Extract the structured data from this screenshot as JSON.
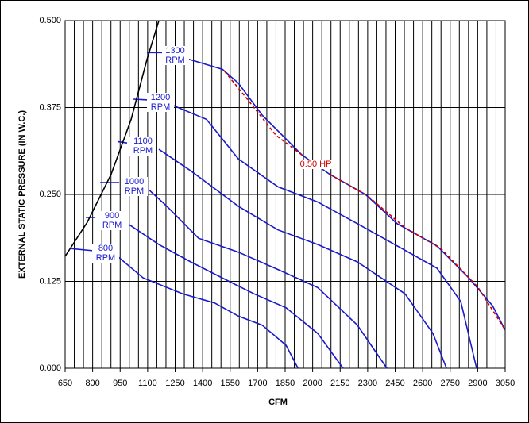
{
  "chart_data": {
    "type": "line",
    "x_label": "CFM",
    "y_label": "EXTERNAL STATIC PRESSURE (IN W.C.)",
    "xlim": [
      650,
      3050
    ],
    "ylim": [
      0,
      0.5
    ],
    "xticks": [
      650,
      800,
      950,
      1100,
      1250,
      1400,
      1550,
      1700,
      1850,
      2000,
      2150,
      2300,
      2450,
      2600,
      2750,
      2900,
      3050
    ],
    "xgrid": [
      650,
      700,
      750,
      800,
      850,
      900,
      950,
      1000,
      1050,
      1100,
      1150,
      1200,
      1250,
      1300,
      1350,
      1400,
      1450,
      1500,
      1550,
      1600,
      1650,
      1700,
      1750,
      1800,
      1850,
      1900,
      1950,
      2000,
      2050,
      2100,
      2150,
      2200,
      2250,
      2300,
      2350,
      2400,
      2450,
      2500,
      2550,
      2600,
      2650,
      2700,
      2750,
      2800,
      2850,
      2900,
      2950,
      3000,
      3050
    ],
    "yticks": [
      {
        "value": 0,
        "label": "0.000"
      },
      {
        "value": 0.125,
        "label": "0.125"
      },
      {
        "value": 0.25,
        "label": "0.250"
      },
      {
        "value": 0.375,
        "label": "0.375"
      },
      {
        "value": 0.5,
        "label": "0.500"
      }
    ],
    "grid": true,
    "series": [
      {
        "name": "800 RPM",
        "color": "#1a1acd",
        "x": [
          685,
          806,
          null,
          936,
          1075,
          1291,
          1465,
          1595,
          1725,
          1855,
          1920
        ],
        "values": [
          0.172,
          0.169,
          null,
          0.161,
          0.13,
          0.107,
          0.094,
          0.075,
          0.062,
          0.033,
          0
        ]
      },
      {
        "name": "900 RPM",
        "color": "#1a1acd",
        "x": [
          763,
          815,
          null,
          997,
          1161,
          1335,
          1551,
          1681,
          1855,
          2028,
          2166
        ],
        "values": [
          0.217,
          0.217,
          null,
          0.207,
          0.178,
          0.153,
          0.124,
          0.107,
          0.087,
          0.05,
          0
        ]
      },
      {
        "name": "1000 RPM",
        "color": "#1a1acd",
        "x": [
          841,
          945,
          null,
          1109,
          1205,
          1378,
          1595,
          1811,
          2028,
          2244,
          2405
        ],
        "values": [
          0.267,
          0.267,
          null,
          0.256,
          0.233,
          0.187,
          0.167,
          0.142,
          0.116,
          0.062,
          0
        ]
      },
      {
        "name": "1100 RPM",
        "color": "#1a1acd",
        "x": [
          936,
          988,
          null,
          1161,
          1335,
          1595,
          1811,
          2028,
          2244,
          2504,
          2656,
          2730
        ],
        "values": [
          0.326,
          0.324,
          null,
          0.315,
          0.284,
          0.233,
          0.199,
          0.178,
          0.153,
          0.107,
          0.05,
          0
        ]
      },
      {
        "name": "1200 RPM",
        "color": "#1a1acd",
        "x": [
          1023,
          1101,
          null,
          1239,
          1421,
          1595,
          1811,
          2028,
          2244,
          2461,
          2678,
          2808,
          2894
        ],
        "values": [
          0.387,
          0.386,
          null,
          0.378,
          0.358,
          0.301,
          0.261,
          0.239,
          0.208,
          0.176,
          0.144,
          0.096,
          0
        ]
      },
      {
        "name": "1300 RPM",
        "color": "#1a1acd",
        "x": [
          1096,
          1183,
          null,
          1317,
          1508,
          1595,
          1725,
          1941,
          2093,
          2288,
          2461,
          2678,
          2851,
          2981,
          3050
        ],
        "values": [
          0.454,
          0.454,
          null,
          0.445,
          0.43,
          0.41,
          0.364,
          0.307,
          0.279,
          0.25,
          0.208,
          0.176,
          0.13,
          0.09,
          0.055
        ]
      },
      {
        "name": "0.50 HP",
        "color": "#cc0000",
        "dashed": true,
        "x": [
          1520,
          1650,
          1800,
          1941,
          null,
          2093,
          2300,
          2500,
          2700,
          2900,
          3050
        ],
        "values": [
          0.427,
          0.385,
          0.335,
          0.307,
          null,
          0.279,
          0.248,
          0.203,
          0.172,
          0.117,
          0.055
        ]
      },
      {
        "color": "#000000",
        "x": [
          650,
          771,
          901,
          1010,
          1096,
          1161
        ],
        "values": [
          0.161,
          0.21,
          0.279,
          0.358,
          0.444,
          0.5
        ]
      }
    ]
  }
}
